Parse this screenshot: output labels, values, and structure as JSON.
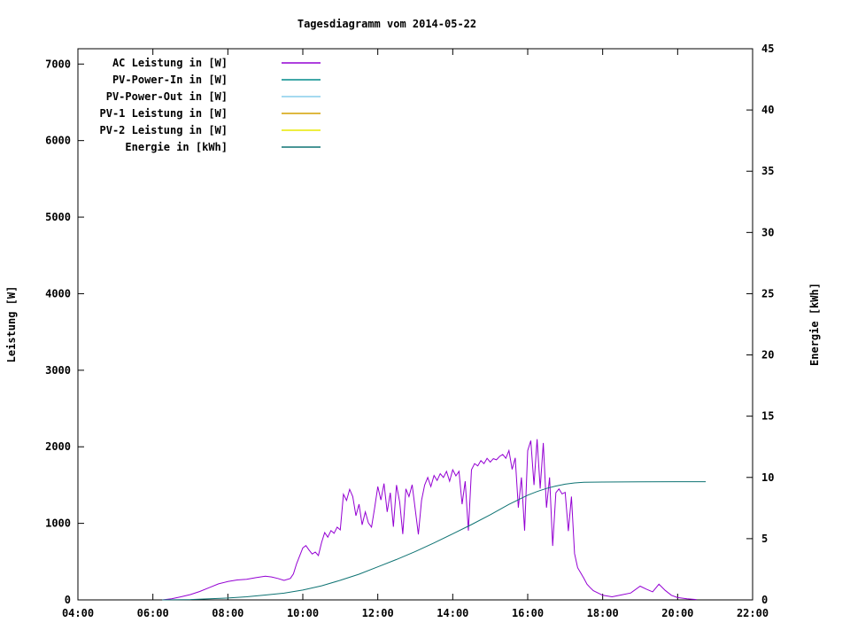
{
  "colors": {
    "background": "#ffffff",
    "frame": "#000000",
    "text": "#000000"
  },
  "chart_data": {
    "type": "line",
    "title": "Tagesdiagramm vom 2014-05-22",
    "xlabel": "",
    "ylabel": "Leistung [W]",
    "y2label": "Energie [kWh]",
    "grid": false,
    "legend_position": "top-left-inside",
    "x_range_minutes": [
      240,
      1320
    ],
    "y_range": [
      0,
      7200
    ],
    "y2_range": [
      0,
      45
    ],
    "x_ticks": [
      {
        "minutes": 240,
        "label": "04:00"
      },
      {
        "minutes": 360,
        "label": "06:00"
      },
      {
        "minutes": 480,
        "label": "08:00"
      },
      {
        "minutes": 600,
        "label": "10:00"
      },
      {
        "minutes": 720,
        "label": "12:00"
      },
      {
        "minutes": 840,
        "label": "14:00"
      },
      {
        "minutes": 960,
        "label": "16:00"
      },
      {
        "minutes": 1080,
        "label": "18:00"
      },
      {
        "minutes": 1200,
        "label": "20:00"
      },
      {
        "minutes": 1320,
        "label": "22:00"
      }
    ],
    "y_ticks": [
      0,
      1000,
      2000,
      3000,
      4000,
      5000,
      6000,
      7000
    ],
    "y2_ticks": [
      0,
      5,
      10,
      15,
      20,
      25,
      30,
      35,
      40,
      45
    ],
    "legend": [
      {
        "label": "AC Leistung in [W]",
        "color": "#9400d3"
      },
      {
        "label": "PV-Power-In in [W]",
        "color": "#008b8b"
      },
      {
        "label": "PV-Power-Out in [W]",
        "color": "#87ceeb"
      },
      {
        "label": "PV-1 Leistung in [W]",
        "color": "#d4a000"
      },
      {
        "label": "PV-2 Leistung in [W]",
        "color": "#e8e800"
      },
      {
        "label": "Energie in [kWh]",
        "color": "#0e7373"
      }
    ],
    "series": [
      {
        "id": "ac-leistung",
        "name": "AC Leistung in [W]",
        "color": "#9400d3",
        "axis": "y1",
        "points": [
          [
            375,
            0
          ],
          [
            390,
            15
          ],
          [
            405,
            40
          ],
          [
            420,
            70
          ],
          [
            435,
            110
          ],
          [
            450,
            160
          ],
          [
            465,
            210
          ],
          [
            480,
            240
          ],
          [
            495,
            260
          ],
          [
            510,
            270
          ],
          [
            525,
            290
          ],
          [
            540,
            310
          ],
          [
            550,
            300
          ],
          [
            560,
            280
          ],
          [
            570,
            255
          ],
          [
            580,
            280
          ],
          [
            585,
            340
          ],
          [
            590,
            470
          ],
          [
            600,
            680
          ],
          [
            605,
            710
          ],
          [
            610,
            650
          ],
          [
            615,
            600
          ],
          [
            620,
            625
          ],
          [
            625,
            580
          ],
          [
            630,
            750
          ],
          [
            635,
            880
          ],
          [
            640,
            820
          ],
          [
            645,
            905
          ],
          [
            650,
            870
          ],
          [
            655,
            950
          ],
          [
            660,
            915
          ],
          [
            665,
            1380
          ],
          [
            670,
            1300
          ],
          [
            675,
            1445
          ],
          [
            680,
            1350
          ],
          [
            685,
            1100
          ],
          [
            690,
            1250
          ],
          [
            695,
            980
          ],
          [
            700,
            1150
          ],
          [
            705,
            1005
          ],
          [
            710,
            950
          ],
          [
            715,
            1200
          ],
          [
            720,
            1480
          ],
          [
            725,
            1305
          ],
          [
            730,
            1520
          ],
          [
            735,
            1150
          ],
          [
            740,
            1400
          ],
          [
            745,
            955
          ],
          [
            750,
            1500
          ],
          [
            755,
            1280
          ],
          [
            760,
            860
          ],
          [
            765,
            1450
          ],
          [
            770,
            1350
          ],
          [
            775,
            1505
          ],
          [
            780,
            1180
          ],
          [
            785,
            855
          ],
          [
            790,
            1300
          ],
          [
            795,
            1500
          ],
          [
            800,
            1600
          ],
          [
            805,
            1480
          ],
          [
            810,
            1625
          ],
          [
            815,
            1560
          ],
          [
            820,
            1650
          ],
          [
            825,
            1600
          ],
          [
            830,
            1680
          ],
          [
            835,
            1550
          ],
          [
            840,
            1700
          ],
          [
            845,
            1620
          ],
          [
            850,
            1680
          ],
          [
            855,
            1250
          ],
          [
            860,
            1550
          ],
          [
            865,
            905
          ],
          [
            870,
            1700
          ],
          [
            875,
            1780
          ],
          [
            880,
            1750
          ],
          [
            885,
            1820
          ],
          [
            890,
            1780
          ],
          [
            895,
            1850
          ],
          [
            900,
            1800
          ],
          [
            905,
            1845
          ],
          [
            910,
            1830
          ],
          [
            915,
            1875
          ],
          [
            920,
            1900
          ],
          [
            925,
            1850
          ],
          [
            930,
            1950
          ],
          [
            935,
            1705
          ],
          [
            940,
            1855
          ],
          [
            945,
            1205
          ],
          [
            950,
            1600
          ],
          [
            955,
            905
          ],
          [
            960,
            1950
          ],
          [
            965,
            2080
          ],
          [
            970,
            1500
          ],
          [
            975,
            2100
          ],
          [
            980,
            1455
          ],
          [
            985,
            2050
          ],
          [
            990,
            1205
          ],
          [
            995,
            1600
          ],
          [
            1000,
            705
          ],
          [
            1005,
            1400
          ],
          [
            1010,
            1450
          ],
          [
            1015,
            1385
          ],
          [
            1020,
            1405
          ],
          [
            1025,
            900
          ],
          [
            1030,
            1350
          ],
          [
            1035,
            605
          ],
          [
            1040,
            420
          ],
          [
            1045,
            350
          ],
          [
            1050,
            280
          ],
          [
            1055,
            205
          ],
          [
            1060,
            160
          ],
          [
            1065,
            120
          ],
          [
            1080,
            60
          ],
          [
            1095,
            40
          ],
          [
            1110,
            65
          ],
          [
            1125,
            90
          ],
          [
            1140,
            180
          ],
          [
            1150,
            140
          ],
          [
            1160,
            105
          ],
          [
            1170,
            205
          ],
          [
            1180,
            125
          ],
          [
            1190,
            60
          ],
          [
            1200,
            30
          ],
          [
            1215,
            15
          ],
          [
            1230,
            5
          ]
        ]
      },
      {
        "id": "pv-power-in",
        "name": "PV-Power-In in [W]",
        "color": "#008b8b",
        "axis": "y1",
        "points": []
      },
      {
        "id": "pv-power-out",
        "name": "PV-Power-Out in [W]",
        "color": "#87ceeb",
        "axis": "y1",
        "points": []
      },
      {
        "id": "pv-1",
        "name": "PV-1 Leistung in [W]",
        "color": "#d4a000",
        "axis": "y1",
        "points": []
      },
      {
        "id": "pv-2",
        "name": "PV-2 Leistung in [W]",
        "color": "#e8e800",
        "axis": "y1",
        "points": []
      },
      {
        "id": "energie",
        "name": "Energie in [kWh]",
        "color": "#0e7373",
        "axis": "y2",
        "points": [
          [
            375,
            0
          ],
          [
            420,
            0.03
          ],
          [
            480,
            0.15
          ],
          [
            510,
            0.25
          ],
          [
            540,
            0.4
          ],
          [
            570,
            0.55
          ],
          [
            600,
            0.8
          ],
          [
            630,
            1.15
          ],
          [
            660,
            1.6
          ],
          [
            690,
            2.1
          ],
          [
            720,
            2.7
          ],
          [
            750,
            3.3
          ],
          [
            780,
            3.95
          ],
          [
            810,
            4.65
          ],
          [
            840,
            5.4
          ],
          [
            870,
            6.15
          ],
          [
            900,
            6.95
          ],
          [
            930,
            7.8
          ],
          [
            960,
            8.55
          ],
          [
            975,
            8.85
          ],
          [
            990,
            9.1
          ],
          [
            1005,
            9.3
          ],
          [
            1020,
            9.45
          ],
          [
            1035,
            9.55
          ],
          [
            1050,
            9.6
          ],
          [
            1080,
            9.62
          ],
          [
            1140,
            9.64
          ],
          [
            1200,
            9.65
          ],
          [
            1245,
            9.65
          ]
        ]
      }
    ]
  }
}
